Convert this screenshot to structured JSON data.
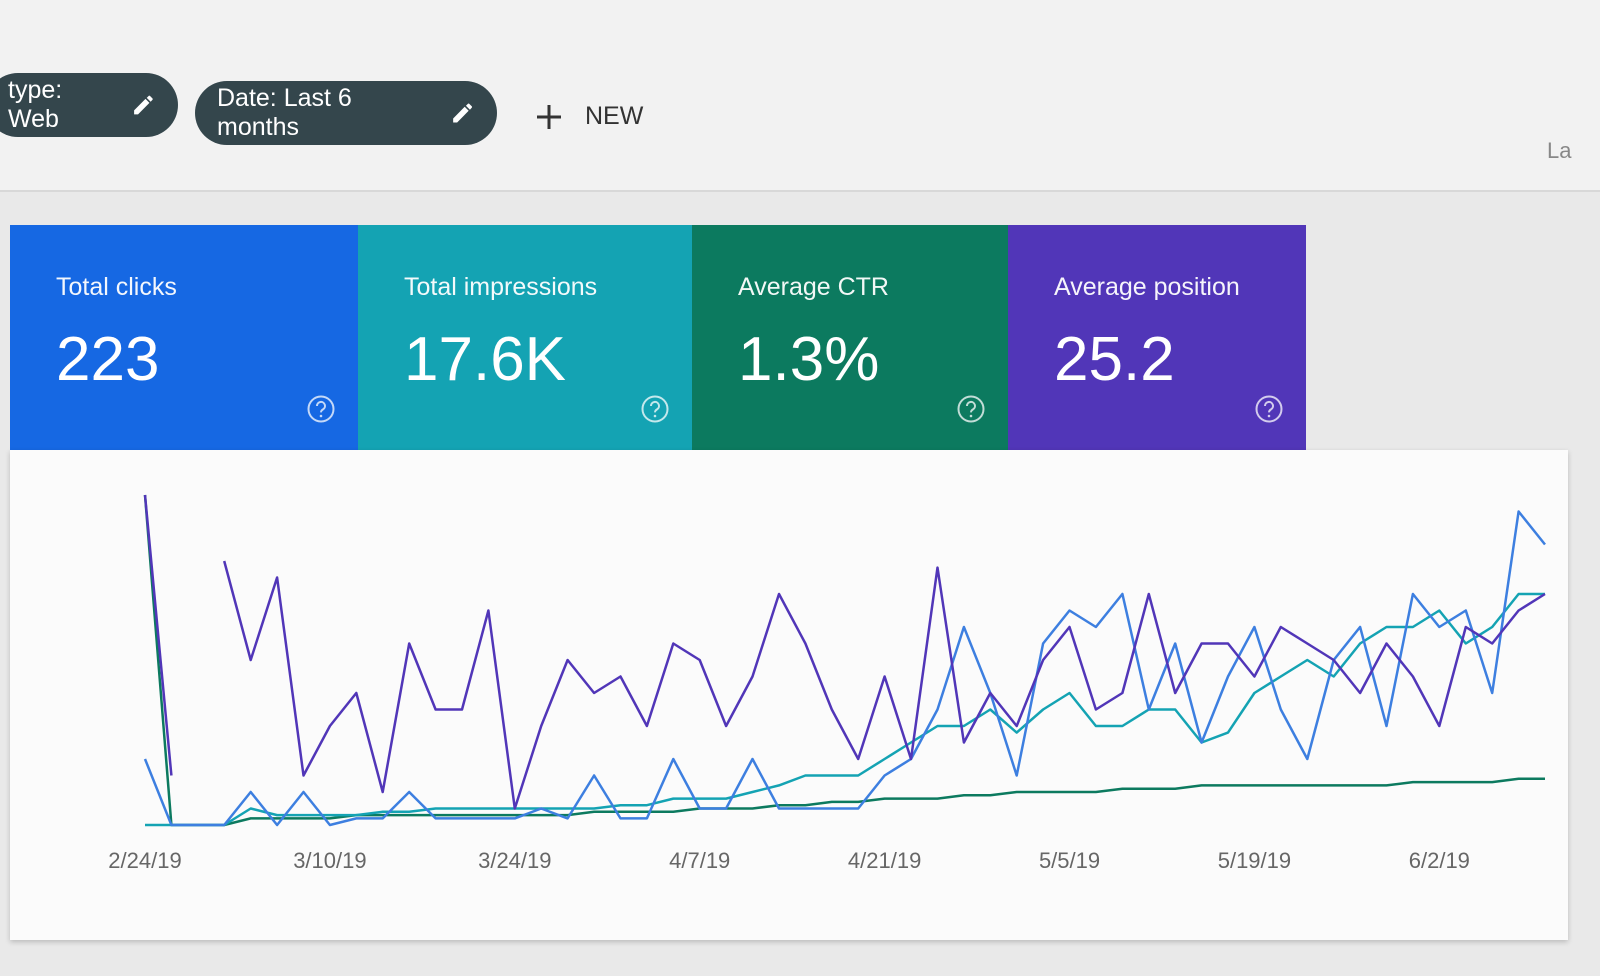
{
  "filters": {
    "chips": [
      "type: Web",
      "Date: Last 6 months"
    ],
    "new_button": "NEW",
    "right_label": "La"
  },
  "cards": [
    {
      "label": "Total clicks",
      "value": "223",
      "color": "#1668e3"
    },
    {
      "label": "Total impressions",
      "value": "17.6K",
      "color": "#14a3b3"
    },
    {
      "label": "Average CTR",
      "value": "1.3%",
      "color": "#0c7a5f"
    },
    {
      "label": "Average position",
      "value": "25.2",
      "color": "#5136b8"
    }
  ],
  "chart_data": {
    "type": "line",
    "categories": [
      "2/24/19",
      null,
      null,
      null,
      null,
      null,
      null,
      "3/10/19",
      null,
      null,
      null,
      null,
      null,
      null,
      "3/24/19",
      null,
      null,
      null,
      null,
      null,
      null,
      "4/7/19",
      null,
      null,
      null,
      null,
      null,
      null,
      "4/21/19",
      null,
      null,
      null,
      null,
      null,
      null,
      "5/5/19",
      null,
      null,
      null,
      null,
      null,
      null,
      "5/19/19",
      null,
      null,
      null,
      null,
      null,
      null,
      "6/2/19",
      null,
      null,
      null,
      null
    ],
    "ylim": [
      0,
      100
    ],
    "series": [
      {
        "color": "#0c7a5f",
        "values": [
          100,
          0,
          0,
          0,
          2,
          2,
          2,
          2,
          3,
          3,
          3,
          3,
          3,
          3,
          3,
          3,
          3,
          4,
          4,
          4,
          4,
          5,
          5,
          5,
          6,
          6,
          7,
          7,
          8,
          8,
          8,
          9,
          9,
          10,
          10,
          10,
          10,
          11,
          11,
          11,
          12,
          12,
          12,
          12,
          12,
          12,
          12,
          12,
          13,
          13,
          13,
          13,
          14,
          14
        ]
      },
      {
        "color": "#14a3b3",
        "values": [
          0,
          0,
          0,
          0,
          5,
          3,
          3,
          3,
          3,
          4,
          4,
          5,
          5,
          5,
          5,
          5,
          5,
          5,
          6,
          6,
          8,
          8,
          8,
          10,
          12,
          15,
          15,
          15,
          20,
          25,
          30,
          30,
          35,
          28,
          35,
          40,
          30,
          30,
          35,
          35,
          25,
          28,
          40,
          45,
          50,
          45,
          55,
          60,
          60,
          65,
          55,
          60,
          70,
          70
        ]
      },
      {
        "color": "#3d7fe0",
        "values": [
          20,
          0,
          0,
          0,
          10,
          0,
          10,
          0,
          2,
          2,
          10,
          2,
          2,
          2,
          2,
          5,
          2,
          15,
          2,
          2,
          20,
          5,
          5,
          20,
          5,
          5,
          5,
          5,
          15,
          20,
          35,
          60,
          40,
          15,
          55,
          65,
          60,
          70,
          35,
          55,
          25,
          45,
          60,
          35,
          20,
          50,
          60,
          30,
          70,
          60,
          65,
          40,
          95,
          85
        ]
      },
      {
        "color": "#5136b8",
        "values": [
          100,
          15,
          null,
          80,
          50,
          75,
          15,
          30,
          40,
          10,
          55,
          35,
          35,
          65,
          5,
          30,
          50,
          40,
          45,
          30,
          55,
          50,
          30,
          45,
          70,
          55,
          35,
          20,
          45,
          20,
          78,
          25,
          40,
          30,
          50,
          60,
          35,
          40,
          70,
          40,
          55,
          55,
          45,
          60,
          55,
          50,
          40,
          55,
          45,
          30,
          60,
          55,
          65,
          70
        ]
      }
    ]
  }
}
